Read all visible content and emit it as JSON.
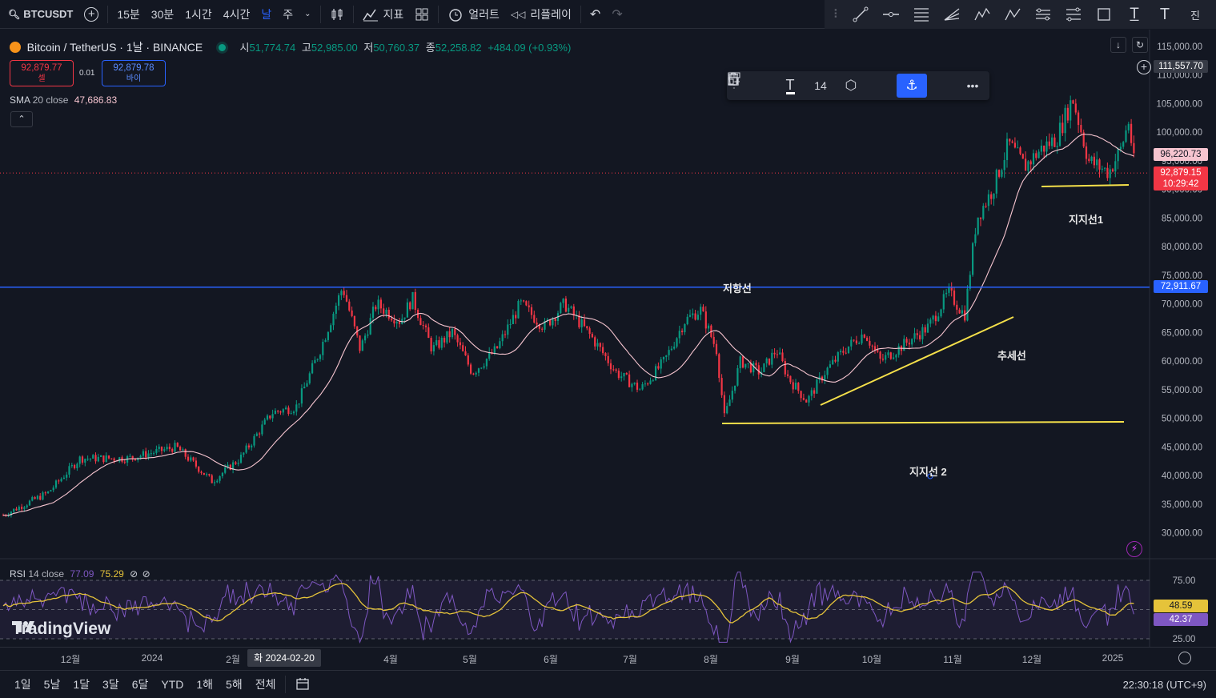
{
  "toolbar": {
    "symbol": "BTCUSDT",
    "intervals": [
      "15분",
      "30분",
      "1시간",
      "4시간",
      "날",
      "주"
    ],
    "active_interval": "날",
    "indicators_label": "지표",
    "alert_label": "얼러트",
    "replay_label": "리플레이",
    "overflow_label": "진"
  },
  "legend": {
    "title": "Bitcoin / TetherUS · 1날 · BINANCE",
    "open_label": "시",
    "open": "51,774.74",
    "high_label": "고",
    "high": "52,985.00",
    "low_label": "저",
    "low": "50,760.37",
    "close_label": "종",
    "close": "52,258.82",
    "change": "+484.09 (+0.93%)",
    "sell_price": "92,879.77",
    "sell_label": "셀",
    "spread": "0.01",
    "buy_price": "92,879.78",
    "buy_label": "바이",
    "sma_label": "SMA",
    "sma_params": "20 close",
    "sma_value": "47,686.83"
  },
  "float_toolbar": {
    "font_size": "14"
  },
  "price_axis": {
    "ticks": [
      "115,000.00",
      "110,000.00",
      "105,000.00",
      "100,000.00",
      "95,000.00",
      "90,000.00",
      "85,000.00",
      "80,000.00",
      "75,000.00",
      "70,000.00",
      "65,000.00",
      "60,000.00",
      "55,000.00",
      "50,000.00",
      "45,000.00",
      "40,000.00",
      "35,000.00",
      "30,000.00"
    ],
    "crosshair_price": "111,557.70",
    "sma_tag": "96,220.73",
    "last_price": "92,879.15",
    "countdown": "10:29:42",
    "line_tag": "72,911.67"
  },
  "annotations": {
    "resistance": "저항선",
    "support1": "지지선1",
    "trend": "추세선",
    "support2": "지지선 2"
  },
  "rsi": {
    "label": "RSI",
    "params": "14 close",
    "value": "77.09",
    "ma_value": "75.29",
    "ticks": [
      "75.00",
      "25.00"
    ],
    "tag_ma": "48.59",
    "tag_rsi": "42.37"
  },
  "time_axis": {
    "labels": [
      "12월",
      "2024",
      "2월",
      "4월",
      "5월",
      "6월",
      "7월",
      "8월",
      "9월",
      "10월",
      "11월",
      "12월",
      "2025"
    ],
    "crosshair_date": "화 2024-02-20"
  },
  "bottom": {
    "ranges": [
      "1일",
      "5날",
      "1달",
      "3달",
      "6달",
      "YTD",
      "1해",
      "5해",
      "전체"
    ],
    "clock": "22:30:18 (UTC+9)"
  },
  "watermark": "TradingView",
  "colors": {
    "background": "#131722",
    "up": "#089981",
    "down": "#f23645",
    "sma": "#f7c5d0",
    "resistance_line": "#2962ff",
    "drawing_yellow": "#f5e04a",
    "rsi_line": "#7e57c2",
    "rsi_ma": "#e5c33a"
  }
}
